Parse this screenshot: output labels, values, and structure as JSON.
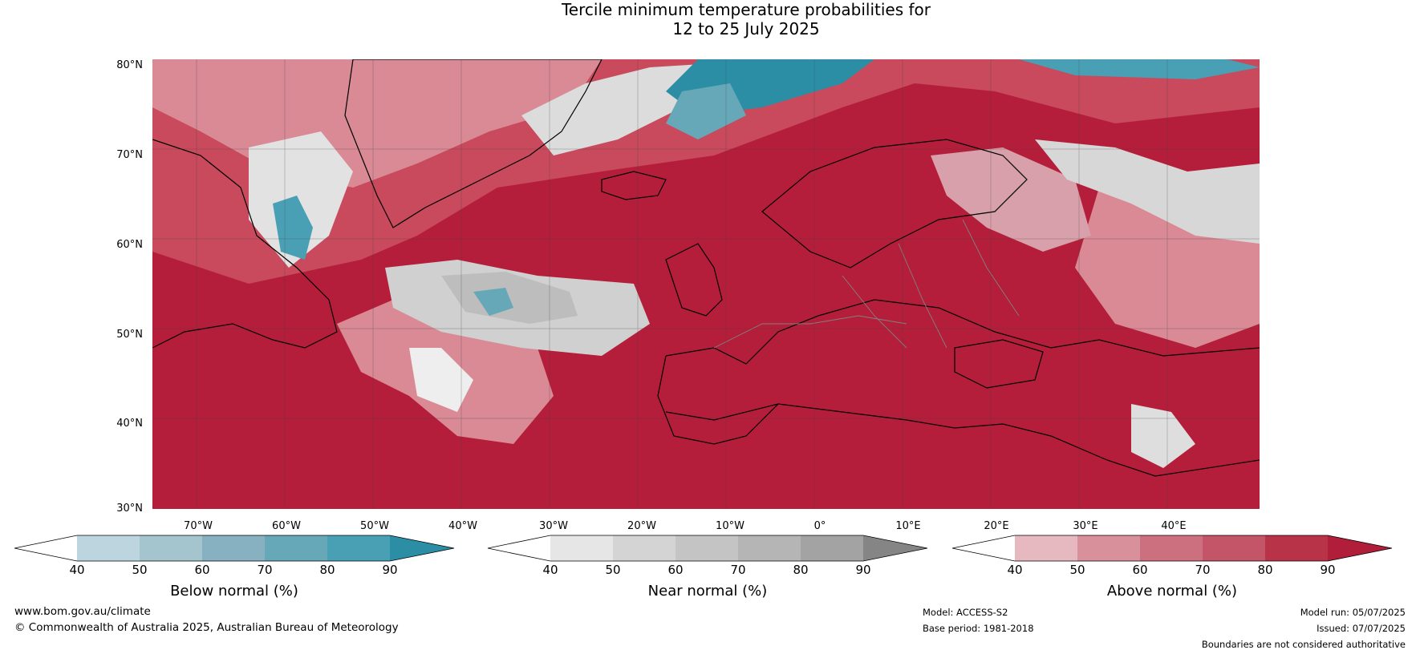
{
  "title": {
    "line1": "Tercile minimum temperature probabilities for",
    "line2": "12 to 25 July 2025"
  },
  "map": {
    "lat_labels": [
      "80°N",
      "70°N",
      "60°N",
      "50°N",
      "40°N",
      "30°N"
    ],
    "lon_labels": [
      "70°W",
      "60°W",
      "50°W",
      "40°W",
      "30°W",
      "20°W",
      "10°W",
      "0°",
      "10°E",
      "20°E",
      "30°E",
      "40°E"
    ],
    "colors": {
      "above_high": "#b41e3a",
      "above_mid": "#c84a5c",
      "above_low": "#d98a95",
      "near": "#c6c6c6",
      "below": "#4aa0b5",
      "coast": "#000000",
      "border": "#808080"
    }
  },
  "colorbars": [
    {
      "title": "Below normal (%)",
      "ticks": [
        "40",
        "50",
        "60",
        "70",
        "80",
        "90"
      ],
      "colors": [
        "#ffffff",
        "#bdd5de",
        "#a4c4ce",
        "#87b0c0",
        "#67a8b8",
        "#49a0b5",
        "#2b8ea5"
      ]
    },
    {
      "title": "Near normal (%)",
      "ticks": [
        "40",
        "50",
        "60",
        "70",
        "80",
        "90"
      ],
      "colors": [
        "#ffffff",
        "#e6e6e6",
        "#d4d4d4",
        "#c4c4c4",
        "#b5b5b5",
        "#a3a3a3",
        "#858585"
      ]
    },
    {
      "title": "Above normal (%)",
      "ticks": [
        "40",
        "50",
        "60",
        "70",
        "80",
        "90"
      ],
      "colors": [
        "#ffffff",
        "#e6b8c0",
        "#d8909a",
        "#cc7080",
        "#c45468",
        "#b83248",
        "#b01e3a"
      ]
    }
  ],
  "footer": {
    "website": "www.bom.gov.au/climate",
    "copyright": "© Commonwealth of Australia 2025, Australian Bureau of Meteorology",
    "model": "Model: ACCESS-S2",
    "base_period": "Base period: 1981-2018",
    "model_run": "Model run: 05/07/2025",
    "issued": "Issued: 07/07/2025",
    "disclaimer": "Boundaries are not considered authoritative"
  }
}
